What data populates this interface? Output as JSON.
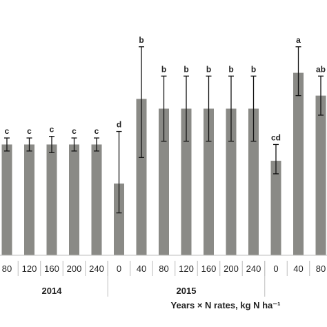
{
  "chart_data": {
    "type": "bar",
    "xlabel": "Years × N rates, kg N ha⁻¹",
    "ylabel": "",
    "title": "",
    "grid": false,
    "bar_color": "#8a8a86",
    "groups": [
      {
        "label": "2014",
        "categories": [
          "80",
          "120",
          "160",
          "200",
          "240"
        ]
      },
      {
        "label": "2015",
        "categories": [
          "0",
          "40",
          "80",
          "120",
          "160",
          "200",
          "240"
        ]
      },
      {
        "label": "",
        "categories": [
          "0",
          "40",
          "80"
        ]
      }
    ],
    "categories": [
      "80",
      "120",
      "160",
      "200",
      "240",
      "0",
      "40",
      "80",
      "120",
      "160",
      "200",
      "240",
      "0",
      "40",
      "80"
    ],
    "values": [
      3.4,
      3.4,
      3.4,
      3.4,
      3.4,
      2.2,
      4.8,
      4.5,
      4.5,
      4.5,
      4.5,
      4.5,
      2.9,
      5.6,
      4.9
    ],
    "err_low": [
      0.2,
      0.2,
      0.25,
      0.2,
      0.2,
      0.9,
      1.8,
      1.0,
      1.0,
      1.0,
      1.0,
      1.0,
      0.4,
      0.7,
      0.6
    ],
    "err_high": [
      0.2,
      0.2,
      0.25,
      0.2,
      0.2,
      1.6,
      1.6,
      1.0,
      1.0,
      1.0,
      1.0,
      1.0,
      0.5,
      0.8,
      0.6
    ],
    "letters": [
      "c",
      "c",
      "c",
      "c",
      "c",
      "d",
      "b",
      "b",
      "b",
      "b",
      "b",
      "b",
      "cd",
      "a",
      "ab"
    ],
    "ylim": [
      0,
      7.2
    ]
  }
}
